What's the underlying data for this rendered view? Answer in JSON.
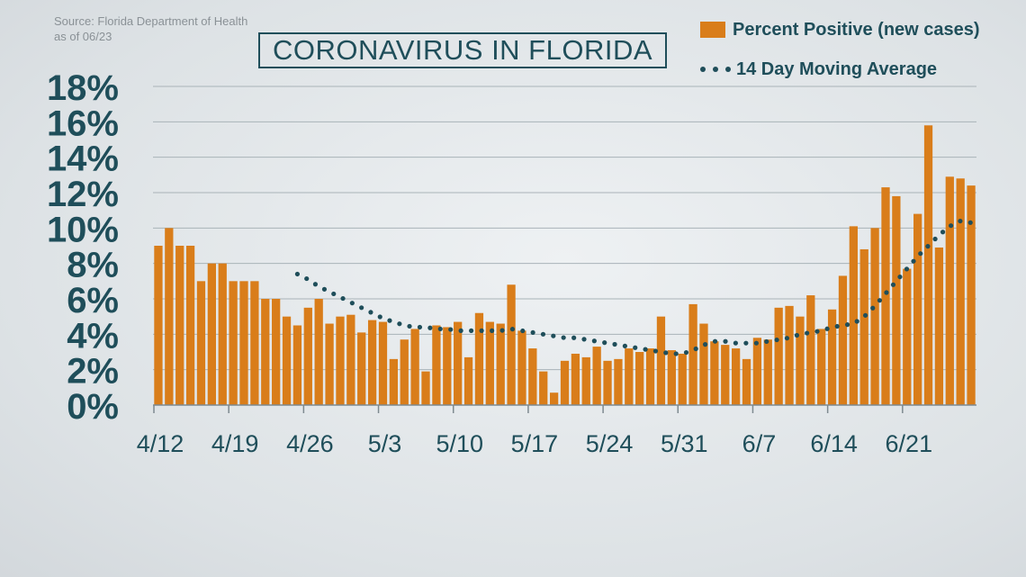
{
  "source": {
    "line1": "Source: Florida Department of Health",
    "line2": "as of 06/23"
  },
  "title": "CORONAVIRUS IN FLORIDA",
  "legend": {
    "bars_label": "Percent Positive (new cases)",
    "line_label": "14 Day Moving Average"
  },
  "colors": {
    "bar": "#d97d1a",
    "line": "#1f4e5a",
    "text": "#1f4e5a",
    "grid": "#a9b3b8"
  },
  "chart_data": {
    "type": "bar",
    "title": "CORONAVIRUS IN FLORIDA",
    "xlabel": "",
    "ylabel": "",
    "ylim": [
      0,
      18
    ],
    "grid": true,
    "legend_position": "top-right",
    "y_ticks": [
      "0%",
      "2%",
      "4%",
      "6%",
      "8%",
      "10%",
      "12%",
      "14%",
      "16%",
      "18%"
    ],
    "x_ticks": [
      {
        "label": "4/12",
        "day_index": 0
      },
      {
        "label": "4/19",
        "day_index": 7
      },
      {
        "label": "4/26",
        "day_index": 14
      },
      {
        "label": "5/3",
        "day_index": 21
      },
      {
        "label": "5/10",
        "day_index": 28
      },
      {
        "label": "5/17",
        "day_index": 35
      },
      {
        "label": "5/24",
        "day_index": 42
      },
      {
        "label": "5/31",
        "day_index": 49
      },
      {
        "label": "6/7",
        "day_index": 56
      },
      {
        "label": "6/14",
        "day_index": 63
      },
      {
        "label": "6/21",
        "day_index": 70
      }
    ],
    "series": [
      {
        "name": "Percent Positive (new cases)",
        "type": "bar",
        "values": [
          9.0,
          10.0,
          9.0,
          9.0,
          7.0,
          8.0,
          8.0,
          7.0,
          7.0,
          7.0,
          6.0,
          6.0,
          5.0,
          4.5,
          5.5,
          6.0,
          4.6,
          5.0,
          5.1,
          4.1,
          4.8,
          4.7,
          2.6,
          3.7,
          4.3,
          1.9,
          4.5,
          4.4,
          4.7,
          2.7,
          5.2,
          4.7,
          4.6,
          6.8,
          4.2,
          3.2,
          1.9,
          0.7,
          2.5,
          2.9,
          2.7,
          3.3,
          2.5,
          2.6,
          3.2,
          3.0,
          3.2,
          5.0,
          3.1,
          2.9,
          5.7,
          4.6,
          3.6,
          3.4,
          3.2,
          2.6,
          3.8,
          3.7,
          5.5,
          5.6,
          5.0,
          6.2,
          4.3,
          5.4,
          7.3,
          10.1,
          8.8,
          10.0,
          12.3,
          11.8,
          7.7,
          10.8,
          15.8,
          8.9,
          12.9,
          12.8,
          12.4
        ]
      },
      {
        "name": "14 Day Moving Average",
        "type": "line",
        "style": "dotted",
        "x_start_index": 13,
        "values": [
          7.4,
          7.1,
          6.7,
          6.4,
          6.1,
          5.8,
          5.5,
          5.2,
          4.9,
          4.7,
          4.5,
          4.4,
          4.4,
          4.3,
          4.3,
          4.2,
          4.2,
          4.2,
          4.2,
          4.2,
          4.3,
          4.2,
          4.1,
          4.0,
          3.9,
          3.8,
          3.8,
          3.7,
          3.6,
          3.5,
          3.4,
          3.3,
          3.2,
          3.1,
          3.0,
          2.9,
          2.9,
          3.1,
          3.4,
          3.6,
          3.6,
          3.5,
          3.5,
          3.5,
          3.6,
          3.7,
          3.8,
          4.0,
          4.1,
          4.2,
          4.4,
          4.5,
          4.6,
          5.0,
          5.6,
          6.3,
          7.0,
          7.7,
          8.4,
          9.0,
          9.6,
          10.1,
          10.4,
          10.3
        ]
      }
    ]
  }
}
